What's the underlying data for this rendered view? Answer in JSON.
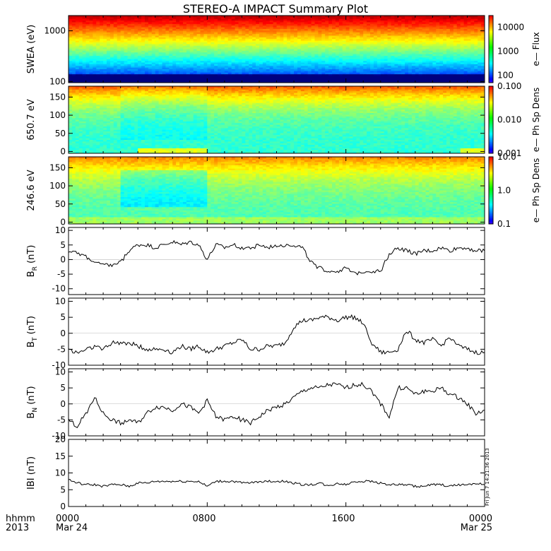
{
  "title": "STEREO-A IMPACT Summary Plot",
  "footer": {
    "row1": [
      "hhmm",
      "0000",
      "0800",
      "1600",
      "0000"
    ],
    "row2": [
      "2013",
      "Mar 24",
      "",
      "",
      "Mar 25"
    ],
    "x_ticks_hours": [
      0,
      8,
      16,
      24
    ]
  },
  "timestamp": "Fri Jun  7 14:21:36 2013",
  "colors": {
    "trace": "#000000",
    "axis": "#000000"
  },
  "chart_data": [
    {
      "type": "heatmap",
      "ylabel": "SWEA (eV)",
      "yscale": "log",
      "ylim": [
        95,
        2000
      ],
      "yticks": [
        100,
        1000
      ],
      "ytick_labels": [
        "100",
        "1000"
      ],
      "colorbar": {
        "label": "e— Flux",
        "scale": "log",
        "ticks": [
          "100",
          "1000",
          "10000"
        ],
        "range": [
          50,
          30000
        ]
      }
    },
    {
      "type": "heatmap",
      "ylabel": "650.7 eV",
      "ylim": [
        -5,
        180
      ],
      "yticks": [
        0,
        50,
        100,
        150
      ],
      "ytick_labels": [
        "0",
        "50",
        "100",
        "150"
      ],
      "colorbar": {
        "label": "e— Ph Sp Dens",
        "scale": "log",
        "ticks": [
          "0.001",
          "0.010",
          "0.100"
        ],
        "range": [
          0.001,
          0.1
        ]
      }
    },
    {
      "type": "heatmap",
      "ylabel": "246.6 eV",
      "ylim": [
        -5,
        180
      ],
      "yticks": [
        0,
        50,
        100,
        150
      ],
      "ytick_labels": [
        "0",
        "50",
        "100",
        "150"
      ],
      "colorbar": {
        "label": "e— Ph Sp Dens",
        "scale": "log",
        "ticks": [
          "0.1",
          "1.0",
          "10.0"
        ],
        "range": [
          0.1,
          10
        ]
      }
    },
    {
      "type": "line",
      "ylabel": "B",
      "ylabel_sub": "R",
      "ylabel_unit": " (nT)",
      "ylim": [
        -12,
        11
      ],
      "yticks": [
        -10,
        -5,
        0,
        5,
        10
      ],
      "ytick_labels": [
        "-10",
        "-5",
        "0",
        "5",
        "10"
      ],
      "x": [
        0,
        0.5,
        1,
        1.5,
        2,
        2.5,
        3,
        3.5,
        4,
        4.5,
        5,
        5.5,
        6,
        6.5,
        7,
        7.5,
        8,
        8.5,
        9,
        9.5,
        10,
        10.5,
        11,
        11.5,
        12,
        12.5,
        13,
        13.5,
        14,
        14.5,
        15,
        15.5,
        16,
        16.5,
        17,
        17.5,
        18,
        18.5,
        19,
        19.5,
        20,
        20.5,
        21,
        21.5,
        22,
        22.5,
        23,
        23.5,
        24
      ],
      "y": [
        3,
        2,
        1,
        -1,
        -2,
        -2,
        -1,
        3,
        5,
        5,
        4,
        5,
        6,
        5,
        6,
        5,
        0,
        5,
        4,
        5,
        4,
        4,
        5,
        4,
        5,
        5,
        5,
        4,
        -1,
        -3,
        -4,
        -4,
        -3,
        -5,
        -4,
        -4,
        -4,
        2,
        4,
        3,
        2,
        3,
        3,
        4,
        3,
        4,
        4,
        3,
        3
      ]
    },
    {
      "type": "line",
      "ylabel": "B",
      "ylabel_sub": "T",
      "ylabel_unit": " (nT)",
      "ylim": [
        -10,
        11
      ],
      "yticks": [
        -10,
        -5,
        0,
        5,
        10
      ],
      "ytick_labels": [
        "-10",
        "-5",
        "0",
        "5",
        "10"
      ],
      "x": [
        0,
        0.5,
        1,
        1.5,
        2,
        2.5,
        3,
        3.5,
        4,
        4.5,
        5,
        5.5,
        6,
        6.5,
        7,
        7.5,
        8,
        8.5,
        9,
        9.5,
        10,
        10.5,
        11,
        11.5,
        12,
        12.5,
        13,
        13.5,
        14,
        14.5,
        15,
        15.5,
        16,
        16.5,
        17,
        17.5,
        18,
        18.5,
        19,
        19.5,
        20,
        20.5,
        21,
        21.5,
        22,
        22.5,
        23,
        23.5,
        24
      ],
      "y": [
        -5,
        -6,
        -5,
        -4,
        -5,
        -3,
        -3,
        -3,
        -4,
        -5,
        -5,
        -5,
        -6,
        -4,
        -5,
        -4,
        -6,
        -5,
        -4,
        -3,
        -2,
        -5,
        -5,
        -4,
        -4,
        -3,
        2,
        4,
        4,
        5,
        5,
        4,
        5,
        5,
        3,
        -3,
        -6,
        -6,
        -5,
        1,
        -2,
        -3,
        -2,
        -4,
        -1,
        -4,
        -5,
        -6,
        -6
      ]
    },
    {
      "type": "line",
      "ylabel": "B",
      "ylabel_sub": "N",
      "ylabel_unit": " (nT)",
      "ylim": [
        -10,
        11
      ],
      "yticks": [
        -10,
        -5,
        0,
        5,
        10
      ],
      "ytick_labels": [
        "-10",
        "-5",
        "0",
        "5",
        "10"
      ],
      "x": [
        0,
        0.5,
        1,
        1.5,
        2,
        2.5,
        3,
        3.5,
        4,
        4.5,
        5,
        5.5,
        6,
        6.5,
        7,
        7.5,
        8,
        8.5,
        9,
        9.5,
        10,
        10.5,
        11,
        11.5,
        12,
        12.5,
        13,
        13.5,
        14,
        14.5,
        15,
        15.5,
        16,
        16.5,
        17,
        17.5,
        18,
        18.5,
        19,
        19.5,
        20,
        20.5,
        21,
        21.5,
        22,
        22.5,
        23,
        23.5,
        24
      ],
      "y": [
        -5,
        -7,
        -3,
        2,
        -3,
        -5,
        -6,
        -5,
        -6,
        -3,
        -1,
        -1,
        -2,
        0,
        -1,
        -3,
        1,
        -4,
        -5,
        -4,
        -5,
        -6,
        -4,
        -2,
        -1,
        0,
        2,
        4,
        5,
        5,
        6,
        6,
        5,
        6,
        6,
        4,
        0,
        -4,
        5,
        5,
        3,
        4,
        4,
        5,
        3,
        2,
        0,
        -3,
        -2
      ]
    },
    {
      "type": "line",
      "ylabel": "IBI (nT)",
      "ylim": [
        0,
        20
      ],
      "yticks": [
        0,
        5,
        10,
        15,
        20
      ],
      "ytick_labels": [
        "0",
        "5",
        "10",
        "15",
        "20"
      ],
      "x": [
        0,
        0.5,
        1,
        1.5,
        2,
        2.5,
        3,
        3.5,
        4,
        4.5,
        5,
        5.5,
        6,
        6.5,
        7,
        7.5,
        8,
        8.5,
        9,
        9.5,
        10,
        10.5,
        11,
        11.5,
        12,
        12.5,
        13,
        13.5,
        14,
        14.5,
        15,
        15.5,
        16,
        16.5,
        17,
        17.5,
        18,
        18.5,
        19,
        19.5,
        20,
        20.5,
        21,
        21.5,
        22,
        22.5,
        23,
        23.5,
        24
      ],
      "y": [
        8,
        7,
        6.5,
        6.5,
        6,
        6.5,
        6.5,
        6,
        7,
        7,
        7.5,
        7.5,
        7.5,
        7.5,
        7.5,
        7.5,
        6,
        7.5,
        7.5,
        7.5,
        7,
        7,
        7.5,
        7.5,
        7.5,
        7.5,
        7,
        6.5,
        6.5,
        7,
        6,
        7,
        6.5,
        7.5,
        7.5,
        7.5,
        7,
        6.5,
        6.5,
        6.5,
        6,
        6,
        6.5,
        6.5,
        6,
        6.5,
        6.5,
        7,
        6.5
      ]
    }
  ]
}
